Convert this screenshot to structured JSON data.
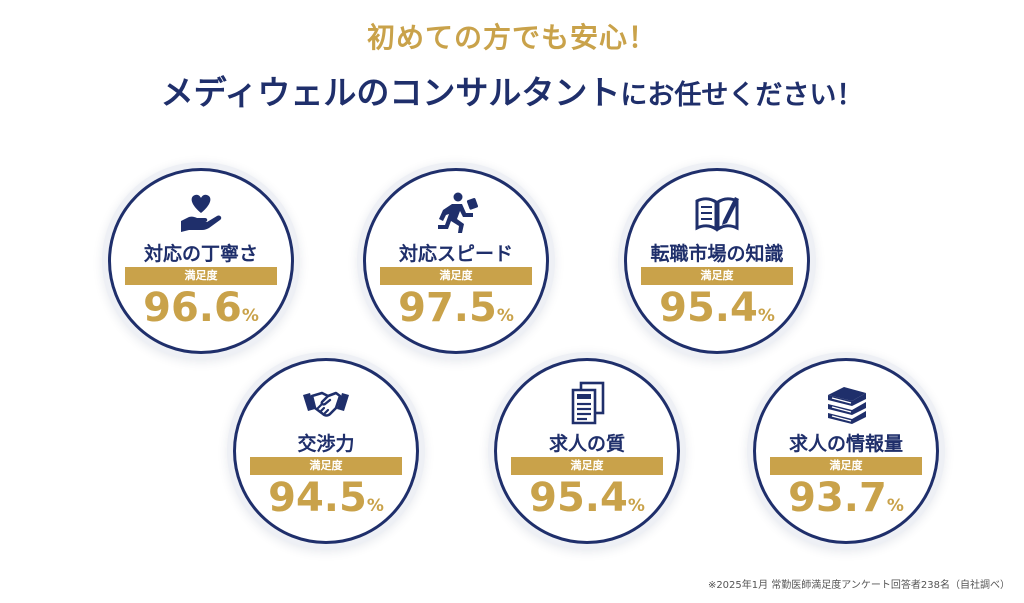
{
  "colors": {
    "navy": "#1f2f6b",
    "gold": "#c9a24a",
    "text_dark": "#1f2f6b",
    "footnote": "#555555"
  },
  "heading": {
    "sub": "初めての方でも安心！",
    "main_part1": "メディウェルのコンサルタント",
    "main_part2": "にお任せください！"
  },
  "band_label": "満足度",
  "percent_sign": "%",
  "cards": [
    {
      "label": "対応の丁寧さ",
      "value": "96.6",
      "icon": "hand-heart-icon"
    },
    {
      "label": "対応スピード",
      "value": "97.5",
      "icon": "running-person-icon"
    },
    {
      "label": "転職市場の知識",
      "value": "95.4",
      "icon": "open-book-pen-icon"
    },
    {
      "label": "交渉力",
      "value": "94.5",
      "icon": "handshake-icon"
    },
    {
      "label": "求人の質",
      "value": "95.4",
      "icon": "documents-icon"
    },
    {
      "label": "求人の情報量",
      "value": "93.7",
      "icon": "book-stack-icon"
    }
  ],
  "footnote": "※2025年1月 常勤医師満足度アンケート回答者238名（自社調べ）"
}
